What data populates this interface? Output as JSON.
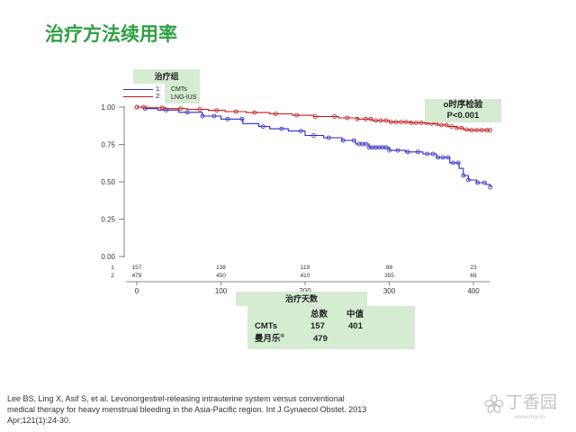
{
  "slide": {
    "title": "治疗方法续用率",
    "citation_lines": [
      "Lee BS, Ling X, Asif S, et al. Levonorgestrel-releasing intrauterine system versus conventional",
      "medical therapy for heavy menstrual bleeding in the Asia-Pacific region. Int J Gynaecol Obstet. 2013",
      "Apr;121(1):24-30."
    ],
    "watermark": {
      "brand": "丁香园",
      "url": "www.dxy.cn",
      "icon": "dxy-flower-logo-icon"
    }
  },
  "colors": {
    "title": "#2fa044",
    "panel": "#d5ecd2",
    "axis": "#666666",
    "watermark": "#c6c6c6"
  },
  "chart_data": {
    "type": "line",
    "line_style": "step",
    "grid": false,
    "legend": {
      "title": "治疗组",
      "placement": "top-left"
    },
    "x_axis": {
      "label": "治疗天数",
      "range": [
        0,
        420
      ],
      "ticks": [
        0,
        100,
        200,
        300,
        400
      ],
      "tick_labels": [
        "0",
        "100",
        "200",
        "300",
        "400"
      ]
    },
    "y_axis": {
      "range": [
        0,
        1
      ],
      "ticks": [
        1,
        0.75,
        0.5,
        0.25,
        0
      ],
      "tick_labels": [
        "1.00",
        "0.75",
        "0.50",
        "0.25",
        "0.00"
      ]
    },
    "series": [
      {
        "key": "1:",
        "name": "CMTs",
        "color": "#2a2ac6",
        "points": [
          [
            0,
            1
          ],
          [
            10,
            0.99
          ],
          [
            25,
            0.98
          ],
          [
            50,
            0.965
          ],
          [
            78,
            0.94
          ],
          [
            100,
            0.92
          ],
          [
            126,
            0.89
          ],
          [
            145,
            0.87
          ],
          [
            158,
            0.855
          ],
          [
            180,
            0.84
          ],
          [
            200,
            0.81
          ],
          [
            222,
            0.795
          ],
          [
            244,
            0.777
          ],
          [
            260,
            0.753
          ],
          [
            276,
            0.73
          ],
          [
            300,
            0.71
          ],
          [
            319,
            0.7
          ],
          [
            340,
            0.687
          ],
          [
            356,
            0.663
          ],
          [
            372,
            0.627
          ],
          [
            383,
            0.59
          ],
          [
            388,
            0.542
          ],
          [
            394,
            0.512
          ],
          [
            404,
            0.494
          ],
          [
            415,
            0.482
          ],
          [
            420,
            0.464
          ]
        ],
        "censored": [
          0,
          10,
          35,
          60,
          78,
          92,
          108,
          125,
          150,
          172,
          195,
          210,
          228,
          245,
          258,
          264,
          268,
          272,
          276,
          280,
          284,
          288,
          292,
          296,
          300,
          310,
          322,
          334,
          345,
          352,
          358,
          364,
          370,
          376,
          382,
          388,
          394,
          405,
          413,
          420
        ]
      },
      {
        "key": "2:",
        "name": "LNG-IUS",
        "color": "#c41717",
        "points": [
          [
            0,
            1
          ],
          [
            12,
            0.995
          ],
          [
            35,
            0.99
          ],
          [
            60,
            0.985
          ],
          [
            85,
            0.978
          ],
          [
            105,
            0.97
          ],
          [
            130,
            0.963
          ],
          [
            158,
            0.955
          ],
          [
            185,
            0.945
          ],
          [
            210,
            0.937
          ],
          [
            240,
            0.928
          ],
          [
            262,
            0.92
          ],
          [
            280,
            0.91
          ],
          [
            300,
            0.9
          ],
          [
            325,
            0.895
          ],
          [
            345,
            0.89
          ],
          [
            358,
            0.88
          ],
          [
            370,
            0.87
          ],
          [
            380,
            0.86
          ],
          [
            388,
            0.85
          ],
          [
            395,
            0.845
          ],
          [
            420,
            0.845
          ]
        ],
        "censored": [
          0,
          8,
          30,
          52,
          75,
          95,
          118,
          140,
          165,
          190,
          212,
          235,
          250,
          262,
          272,
          278,
          284,
          290,
          296,
          302,
          308,
          314,
          320,
          326,
          332,
          338,
          344,
          350,
          356,
          362,
          368,
          374,
          380,
          386,
          392,
          398,
          404,
          410,
          416,
          420
        ]
      }
    ],
    "annotation": {
      "test": "o时序检验",
      "p_value": "P<0.001",
      "placement": "top-right"
    },
    "risk_table": {
      "times": [
        0,
        100,
        200,
        300,
        400
      ],
      "rows": [
        {
          "label": "1",
          "values": [
            157,
            138,
            119,
            88,
            23
          ]
        },
        {
          "label": "2",
          "values": [
            479,
            450,
            410,
            355,
            69
          ]
        }
      ]
    },
    "summary_table": {
      "columns": [
        "总数",
        "中值"
      ],
      "rows": [
        {
          "label": "CMTs",
          "total": "157",
          "median": "401"
        },
        {
          "label": "曼月乐",
          "label_sup": "®",
          "total": "479"
        }
      ]
    }
  }
}
